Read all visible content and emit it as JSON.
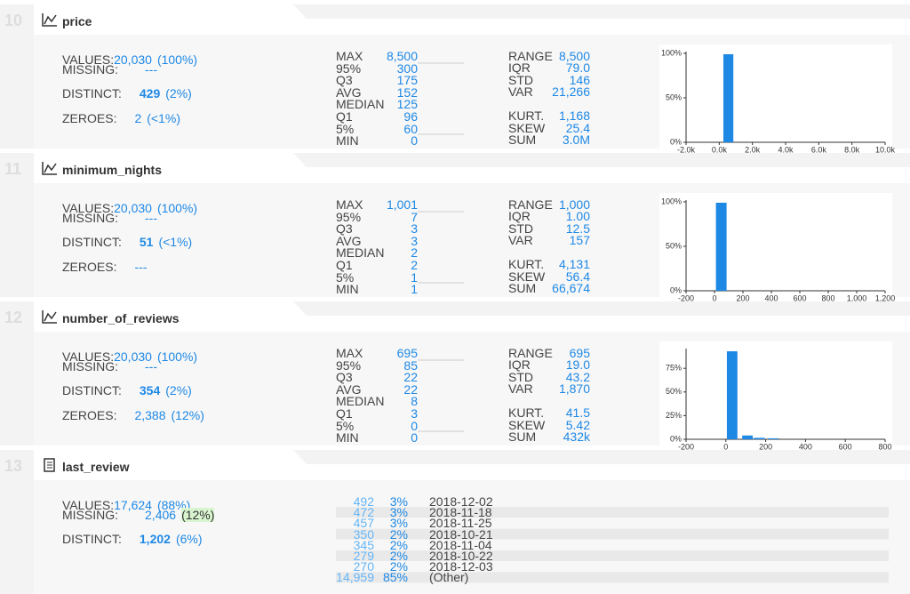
{
  "sections": [
    {
      "index": "10",
      "name": "price",
      "overview": [
        {
          "label": "VALUES:",
          "value": "20,030",
          "pct": "(100%)"
        },
        {
          "label": "MISSING:",
          "value": "---"
        },
        {
          "label": "DISTINCT:",
          "value": "429",
          "pct": "(2%)"
        },
        {
          "label": "ZEROES:",
          "value": "2",
          "pct": "(<1%)"
        }
      ],
      "quantiles": [
        [
          "MAX",
          "8,500"
        ],
        [
          "95%",
          "300"
        ],
        [
          "Q3",
          "175"
        ],
        [
          "AVG",
          "152"
        ],
        [
          "MEDIAN",
          "125"
        ],
        [
          "Q1",
          "96"
        ],
        [
          "5%",
          "60"
        ],
        [
          "MIN",
          "0"
        ]
      ],
      "moments": [
        [
          "RANGE",
          "8,500"
        ],
        [
          "IQR",
          "79.0"
        ],
        [
          "STD",
          "146"
        ],
        [
          "VAR",
          "21,266"
        ],
        [
          "KURT.",
          "1,168"
        ],
        [
          "SKEW",
          "25.4"
        ],
        [
          "SUM",
          "3.0M"
        ]
      ],
      "histogram": {
        "type": "histogram",
        "bins": [
          250,
          850
        ],
        "values": [
          99
        ],
        "color": "#1e88e5",
        "xlim": [
          -2000,
          10000
        ],
        "xticks": [
          {
            "value": -2000,
            "label": "-2.0k"
          },
          {
            "value": 0,
            "label": "0.0k"
          },
          {
            "value": 2000,
            "label": "2.0k"
          },
          {
            "value": 4000,
            "label": "4.0k"
          },
          {
            "value": 6000,
            "label": "6.0k"
          },
          {
            "value": 8000,
            "label": "8.0k"
          },
          {
            "value": 10000,
            "label": "10.0k"
          }
        ],
        "ylim": [
          0,
          100
        ],
        "yticks": [
          {
            "value": 0,
            "label": "0%"
          },
          {
            "value": 50,
            "label": "50%"
          },
          {
            "value": 100,
            "label": "100%"
          }
        ]
      }
    },
    {
      "index": "11",
      "name": "minimum_nights",
      "overview": [
        {
          "label": "VALUES:",
          "value": "20,030",
          "pct": "(100%)"
        },
        {
          "label": "MISSING:",
          "value": "---"
        },
        {
          "label": "DISTINCT:",
          "value": "51",
          "pct": "(<1%)"
        },
        {
          "label": "ZEROES:",
          "value": "---"
        }
      ],
      "quantiles": [
        [
          "MAX",
          "1,001"
        ],
        [
          "95%",
          "7"
        ],
        [
          "Q3",
          "3"
        ],
        [
          "AVG",
          "3"
        ],
        [
          "MEDIAN",
          "2"
        ],
        [
          "Q1",
          "2"
        ],
        [
          "5%",
          "1"
        ],
        [
          "MIN",
          "1"
        ]
      ],
      "moments": [
        [
          "RANGE",
          "1,000"
        ],
        [
          "IQR",
          "1.00"
        ],
        [
          "STD",
          "12.5"
        ],
        [
          "VAR",
          "157"
        ],
        [
          "KURT.",
          "4,131"
        ],
        [
          "SKEW",
          "56.4"
        ],
        [
          "SUM",
          "66,674"
        ]
      ],
      "histogram": {
        "type": "histogram",
        "bins": [
          10,
          85
        ],
        "values": [
          99
        ],
        "color": "#1e88e5",
        "xlim": [
          -200,
          1200
        ],
        "xticks": [
          -200,
          0,
          200,
          400,
          600,
          800,
          {
            "value": 1000,
            "label": "1,000"
          },
          {
            "value": 1200,
            "label": "1,200"
          }
        ],
        "ylim": [
          0,
          100
        ],
        "yticks": [
          {
            "value": 0,
            "label": "0%"
          },
          {
            "value": 50,
            "label": "50%"
          },
          {
            "value": 100,
            "label": "100%"
          }
        ]
      }
    },
    {
      "index": "12",
      "name": "number_of_reviews",
      "overview": [
        {
          "label": "VALUES:",
          "value": "20,030",
          "pct": "(100%)"
        },
        {
          "label": "MISSING:",
          "value": "---"
        },
        {
          "label": "DISTINCT:",
          "value": "354",
          "pct": "(2%)"
        },
        {
          "label": "ZEROES:",
          "value": "2,388",
          "pct": "(12%)"
        }
      ],
      "quantiles": [
        [
          "MAX",
          "695"
        ],
        [
          "95%",
          "85"
        ],
        [
          "Q3",
          "22"
        ],
        [
          "AVG",
          "22"
        ],
        [
          "MEDIAN",
          "8"
        ],
        [
          "Q1",
          "3"
        ],
        [
          "5%",
          "0"
        ],
        [
          "MIN",
          "0"
        ]
      ],
      "moments": [
        [
          "RANGE",
          "695"
        ],
        [
          "IQR",
          "19.0"
        ],
        [
          "STD",
          "43.2"
        ],
        [
          "VAR",
          "1,870"
        ],
        [
          "KURT.",
          "41.5"
        ],
        [
          "SKEW",
          "5.42"
        ],
        [
          "SUM",
          "432k"
        ]
      ],
      "histogram": {
        "type": "histogram",
        "bins": [
          5,
          58,
          82,
          135,
          140,
          195,
          212,
          267
        ],
        "values": [
          93,
          null,
          4,
          null,
          1.5,
          null,
          1
        ],
        "color": "#1e88e5",
        "xlim": [
          -200,
          800
        ],
        "xticks": [
          -200,
          0,
          200,
          400,
          600,
          800
        ],
        "ylim": [
          0,
          94
        ],
        "yticks": [
          {
            "value": 0,
            "label": "0%"
          },
          {
            "value": 25,
            "label": "25%"
          },
          {
            "value": 50,
            "label": "50%"
          },
          {
            "value": 75,
            "label": "75%"
          }
        ]
      }
    },
    {
      "index": "13",
      "name": "last_review",
      "overview": [
        {
          "label": "VALUES:",
          "value": "17,624",
          "pct": "(88%)"
        },
        {
          "label": "MISSING:",
          "value": "2,406",
          "pct": "(12%)"
        },
        {
          "label": "DISTINCT:",
          "value": "1,202",
          "pct": "(6%)"
        }
      ],
      "frequencies": [
        [
          "492",
          "3%",
          "2018-12-02"
        ],
        [
          "472",
          "3%",
          "2018-11-18"
        ],
        [
          "457",
          "3%",
          "2018-11-25"
        ],
        [
          "350",
          "2%",
          "2018-10-21"
        ],
        [
          "345",
          "2%",
          "2018-11-04"
        ],
        [
          "279",
          "2%",
          "2018-10-22"
        ],
        [
          "270",
          "2%",
          "2018-12-03"
        ],
        [
          "14,959",
          "85%",
          "(Other)"
        ]
      ]
    }
  ]
}
